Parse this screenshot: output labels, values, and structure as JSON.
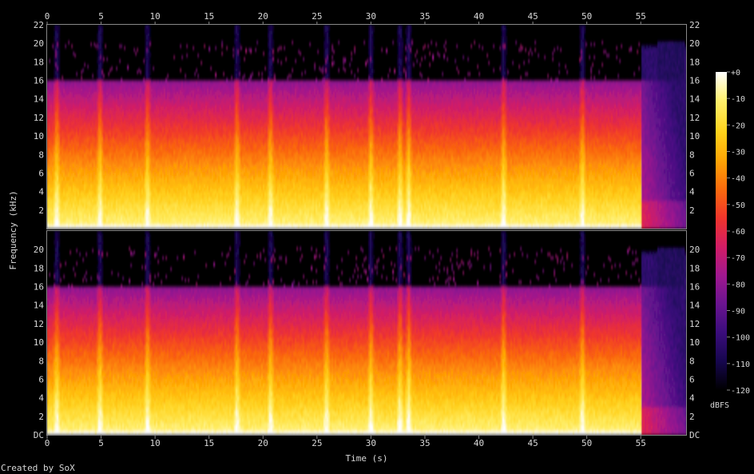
{
  "chart_data": {
    "type": "heatmap",
    "title": "",
    "xlabel": "Time (s)",
    "ylabel": "Frequency (kHz)",
    "xlim": [
      0,
      59.2
    ],
    "x_ticks": [
      0,
      5,
      10,
      15,
      20,
      25,
      30,
      35,
      40,
      45,
      50,
      55
    ],
    "y_ticks_top": [
      "2",
      "4",
      "6",
      "8",
      "10",
      "12",
      "14",
      "16",
      "18",
      "20",
      "22"
    ],
    "y_ticks_bottom": [
      "DC",
      "2",
      "4",
      "6",
      "8",
      "10",
      "12",
      "14",
      "16",
      "18",
      "20"
    ],
    "ylim_khz": [
      0,
      22
    ],
    "channels": 2,
    "content_cutoff_khz": 16,
    "sparse_upper_band_khz": [
      16,
      20
    ],
    "fade_out_start_s": 55,
    "transients_s": [
      0.9,
      4.9,
      9.3,
      17.6,
      20.7,
      25.9,
      30.0,
      32.7,
      33.5,
      42.3,
      49.6
    ],
    "colorbar": {
      "label": "dBFS",
      "ticks": [
        "+0",
        "-10",
        "-20",
        "-30",
        "-40",
        "-50",
        "-60",
        "-70",
        "-80",
        "-90",
        "-100",
        "-110",
        "-120"
      ],
      "range_db": [
        -120,
        0
      ]
    },
    "colormap": [
      "#000000",
      "#16064e",
      "#3a0d7c",
      "#6a1490",
      "#a0188f",
      "#d21d66",
      "#f0342c",
      "#fb6a0d",
      "#ffa405",
      "#ffd21a",
      "#fff06c",
      "#ffffff"
    ],
    "footer": "Created by SoX"
  }
}
